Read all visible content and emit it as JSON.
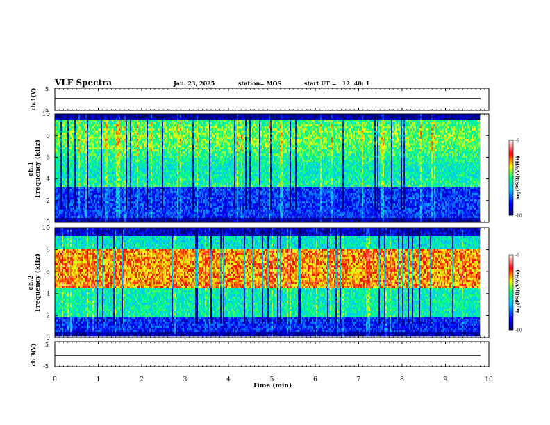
{
  "header": {
    "title": "VLF Spectra",
    "date": "Jan. 23, 2025",
    "station": "station= MOS",
    "start_ut": "start UT =   12: 40: 1"
  },
  "chart_data": [
    {
      "type": "line",
      "panel": "ch1-waveform",
      "ylabel": "ch.1(V)",
      "ylim": [
        -5,
        5
      ],
      "yticks": [
        "5",
        "-5"
      ],
      "series": [
        {
          "values_note_skip": null,
          "x": [
            0,
            9.8
          ],
          "y": [
            0,
            0
          ]
        }
      ]
    },
    {
      "type": "heatmap",
      "panel": "ch1-spectrogram",
      "ylabel": "ch.1\nFrequency (kHz)",
      "ylabel_line1": "ch.1",
      "ylabel_line2": "Frequency (kHz)",
      "ylim": [
        0,
        10
      ],
      "yticks": [
        "0",
        "2",
        "4",
        "6",
        "8",
        "10"
      ],
      "xlim": [
        0,
        10
      ],
      "colorbar": {
        "label": "log(PSD)(V²/Hz)",
        "range": [
          -10,
          -6
        ],
        "ticks": [
          "-6",
          "-7",
          "-8",
          "-9",
          "-10"
        ],
        "colors": [
          "#000080",
          "#0000ff",
          "#00c8ff",
          "#00ff80",
          "#ffff00",
          "#ff0000",
          "#ffffff"
        ]
      }
    },
    {
      "type": "heatmap",
      "panel": "ch2-spectrogram",
      "ylabel": "ch.2\nFrequency (kHz)",
      "ylabel_line1": "ch.2",
      "ylabel_line2": "Frequency (kHz)",
      "ylim": [
        0,
        10
      ],
      "yticks": [
        "0",
        "2",
        "4",
        "6",
        "8",
        "10"
      ],
      "xlim": [
        0,
        10
      ],
      "colorbar": {
        "label": "log(PSD)(V²/Hz)",
        "range": [
          -10,
          -6
        ],
        "ticks": [
          "-6",
          "-7",
          "-8",
          "-9",
          "-10"
        ],
        "colors": [
          "#000080",
          "#0000ff",
          "#00c8ff",
          "#00ff80",
          "#ffff00",
          "#ff0000",
          "#ffffff"
        ]
      }
    },
    {
      "type": "line",
      "panel": "ch3-waveform",
      "ylabel": "ch.3(V)",
      "ylim": [
        -5,
        5
      ],
      "yticks": [
        "5",
        "-5"
      ],
      "xlabel": "Time (min)",
      "xlim": [
        0,
        10
      ],
      "xticks": [
        "0",
        "1",
        "2",
        "3",
        "4",
        "5",
        "6",
        "7",
        "8",
        "9",
        "10"
      ],
      "series": [
        {
          "x": [
            0,
            9.8
          ],
          "y": [
            0,
            0
          ]
        }
      ]
    }
  ]
}
